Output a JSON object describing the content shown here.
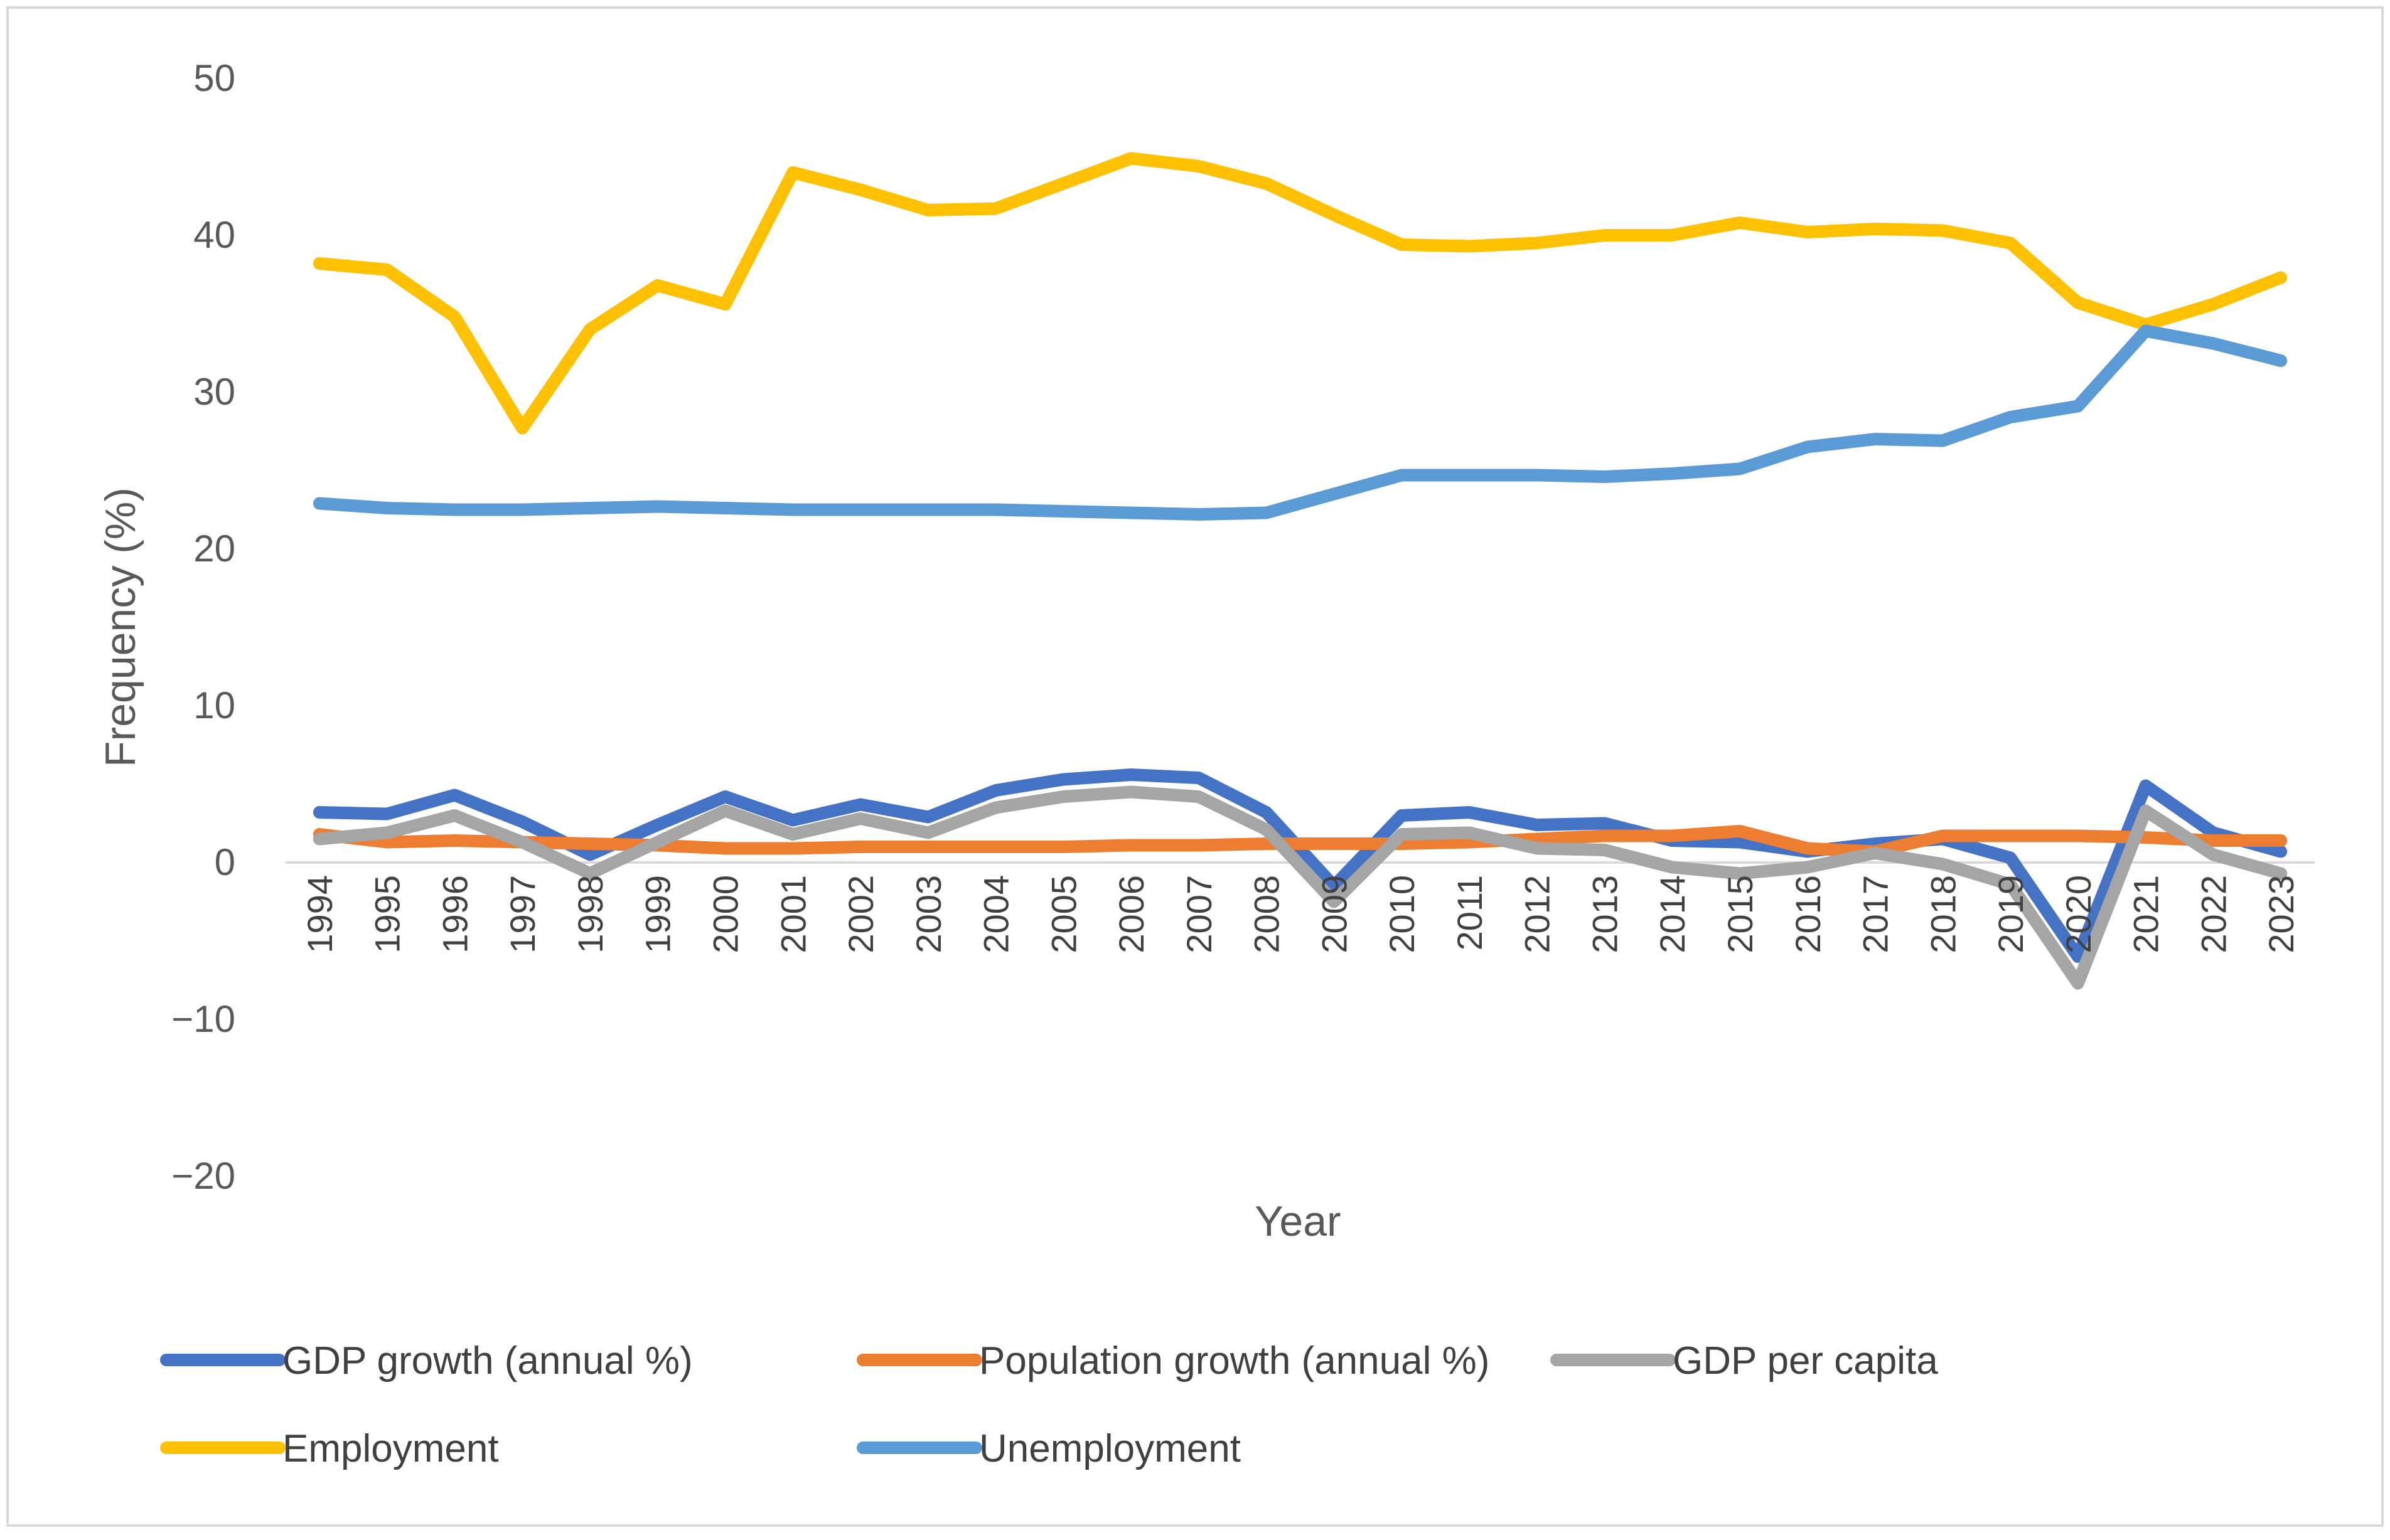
{
  "chart_data": {
    "type": "line",
    "title": "",
    "xlabel": "Year",
    "ylabel": "Frequency (%)",
    "ylim": [
      -20,
      50
    ],
    "yticks": [
      50,
      40,
      30,
      20,
      10,
      0,
      -10,
      -20
    ],
    "ytick_labels": [
      "50",
      "40",
      "30",
      "20",
      "10",
      "0",
      "−10",
      "−20"
    ],
    "grid": false,
    "legend_position": "bottom",
    "categories": [
      "1994",
      "1995",
      "1996",
      "1997",
      "1998",
      "1999",
      "2000",
      "2001",
      "2002",
      "2003",
      "2004",
      "2005",
      "2006",
      "2007",
      "2008",
      "2009",
      "2010",
      "2011",
      "2012",
      "2013",
      "2014",
      "2015",
      "2016",
      "2017",
      "2018",
      "2019",
      "2020",
      "2021",
      "2022",
      "2023"
    ],
    "series": [
      {
        "name": "GDP growth (annual %)",
        "color": "#4472C4",
        "values": [
          3.2,
          3.1,
          4.3,
          2.6,
          0.5,
          2.4,
          4.2,
          2.7,
          3.7,
          2.9,
          4.6,
          5.3,
          5.6,
          5.4,
          3.2,
          -1.5,
          3.0,
          3.2,
          2.4,
          2.5,
          1.4,
          1.3,
          0.7,
          1.2,
          1.5,
          0.3,
          -6.0,
          4.9,
          1.9,
          0.7
        ]
      },
      {
        "name": "Population growth (annual %)",
        "color": "#ED7D31",
        "values": [
          1.8,
          1.3,
          1.4,
          1.3,
          1.2,
          1.1,
          0.9,
          0.9,
          1.0,
          1.0,
          1.0,
          1.0,
          1.1,
          1.1,
          1.2,
          1.2,
          1.2,
          1.3,
          1.5,
          1.7,
          1.7,
          2.0,
          0.9,
          0.7,
          1.7,
          1.7,
          1.7,
          1.6,
          1.4,
          1.4
        ]
      },
      {
        "name": "GDP per capita",
        "color": "#A5A5A5",
        "values": [
          1.5,
          1.9,
          3.0,
          1.3,
          -0.7,
          1.3,
          3.3,
          1.8,
          2.8,
          1.9,
          3.5,
          4.2,
          4.5,
          4.2,
          2.1,
          -2.5,
          1.8,
          1.9,
          0.9,
          0.8,
          -0.3,
          -0.7,
          -0.3,
          0.6,
          -0.1,
          -1.4,
          -7.7,
          3.3,
          0.5,
          -0.7
        ]
      },
      {
        "name": "Employment",
        "color": "#FFC000",
        "values": [
          38.2,
          37.8,
          34.8,
          27.7,
          34.0,
          36.8,
          35.6,
          44.0,
          42.9,
          41.6,
          41.7,
          43.3,
          44.9,
          44.4,
          43.3,
          41.3,
          39.4,
          39.3,
          39.5,
          40.0,
          40.0,
          40.8,
          40.2,
          40.4,
          40.3,
          39.5,
          35.7,
          34.3,
          35.6,
          37.3
        ]
      },
      {
        "name": "Unemployment",
        "color": "#5B9BD5",
        "values": [
          22.9,
          22.6,
          22.5,
          22.5,
          22.6,
          22.7,
          22.6,
          22.5,
          22.5,
          22.5,
          22.5,
          22.4,
          22.3,
          22.2,
          22.3,
          23.5,
          24.7,
          24.7,
          24.7,
          24.6,
          24.8,
          25.1,
          26.5,
          27.0,
          26.9,
          28.4,
          29.1,
          33.9,
          33.1,
          32.0
        ]
      }
    ]
  }
}
